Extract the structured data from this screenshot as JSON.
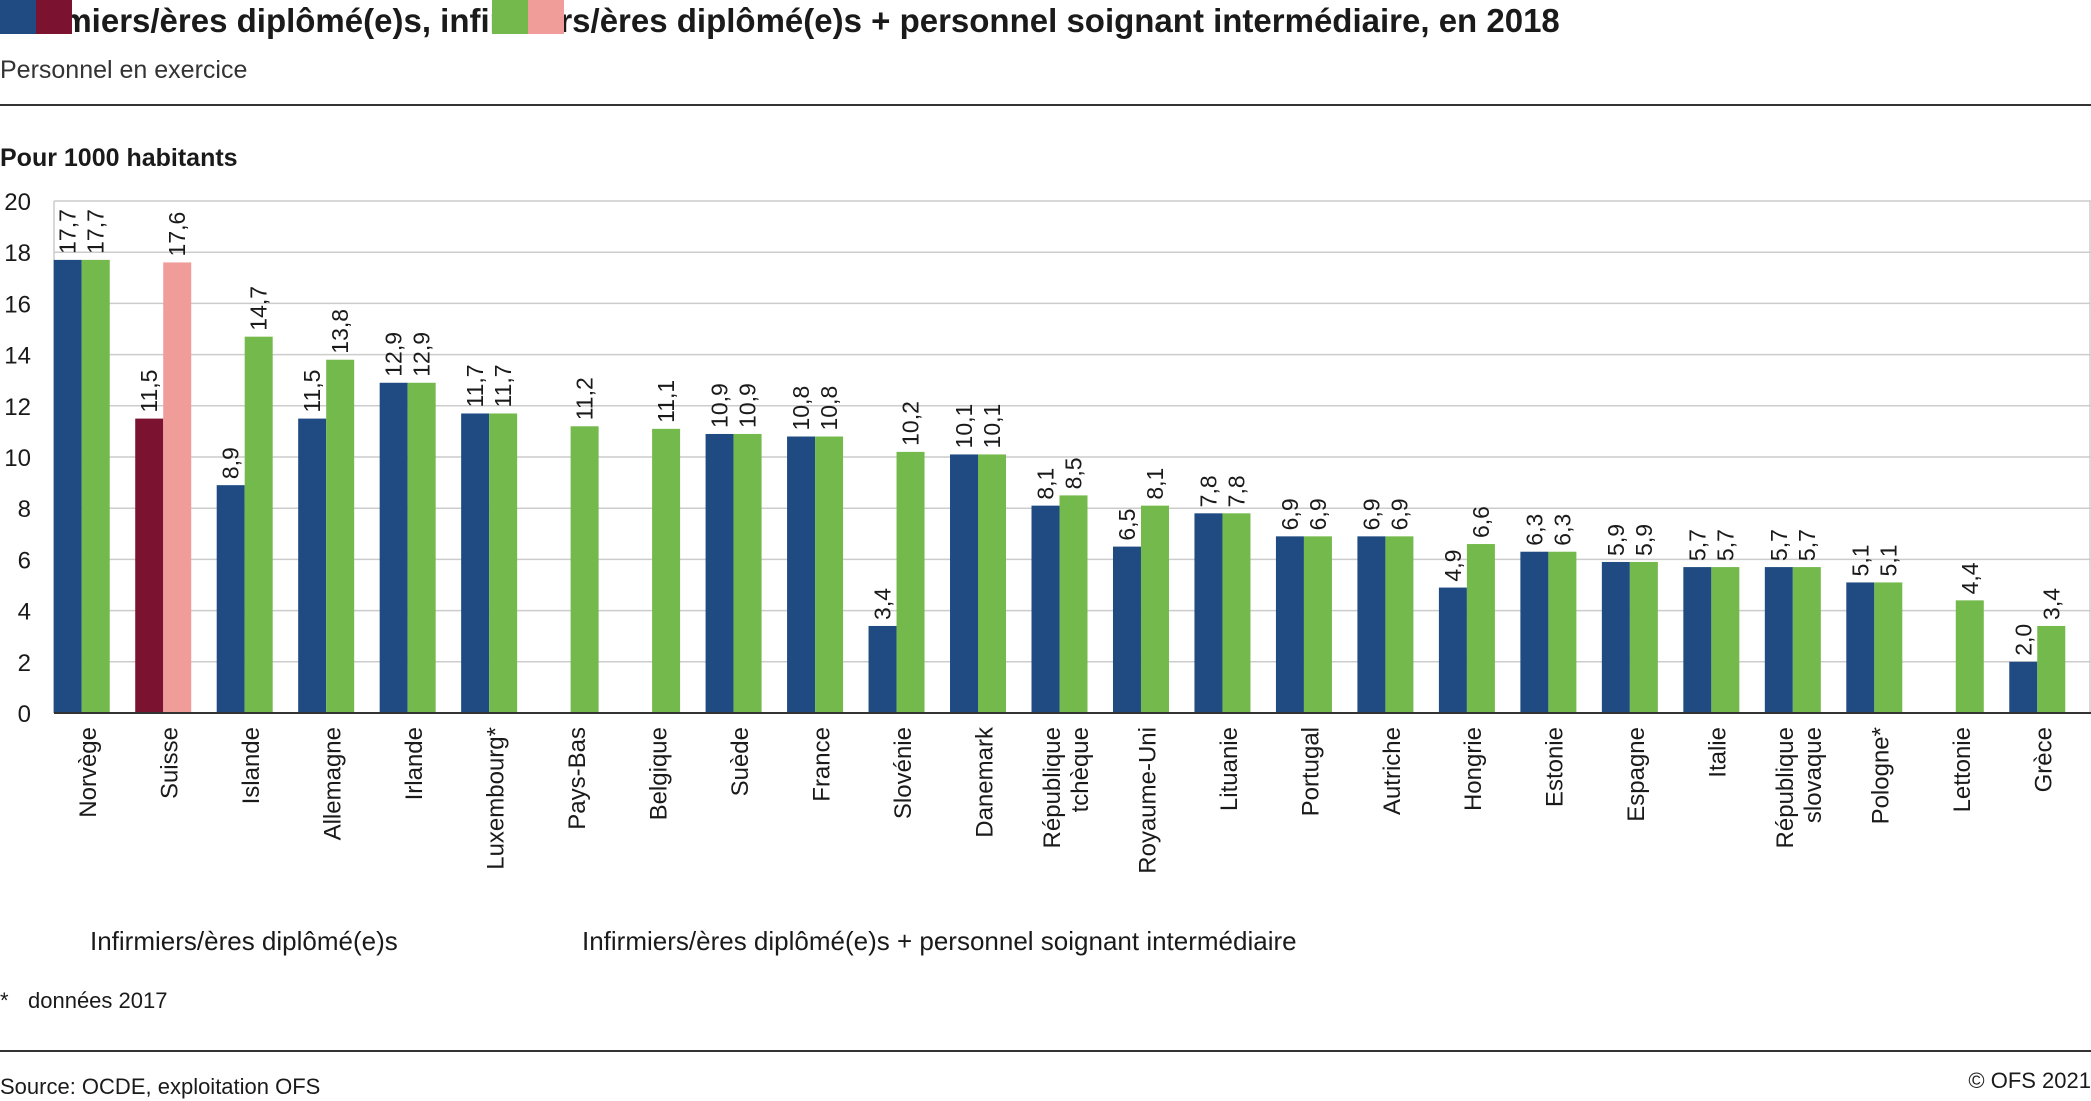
{
  "header": {
    "title": "Infirmiers/ères diplômé(e)s, infirmiers/ères diplômé(e)s + personnel soignant intermédiaire, en 2018",
    "subtitle": "Personnel en exercice"
  },
  "legend": {
    "series1": "Infirmiers/ères diplômé(e)s",
    "series2": "Infirmiers/ères diplômé(e)s + personnel soignant intermédiaire"
  },
  "footer": {
    "note_marker": "*",
    "note_text": "données 2017",
    "source": "Source: OCDE, exploitation OFS",
    "copyright": "© OFS 2021"
  },
  "colors": {
    "series1": "#1f4b82",
    "series2": "#73b94b",
    "series1_highlight": "#7a1230",
    "series2_highlight": "#f09c98",
    "gridline": "#cccccc",
    "axis": "#333333"
  },
  "chart_data": {
    "type": "bar",
    "title": "Infirmiers/ères diplômé(e)s, infirmiers/ères diplômé(e)s + personnel soignant intermédiaire, en 2018",
    "ylabel": "Pour 1000 habitants",
    "ylim": [
      0,
      20
    ],
    "yticks": [
      0,
      2,
      4,
      6,
      8,
      10,
      12,
      14,
      16,
      18,
      20
    ],
    "grid": true,
    "legend_position": "bottom-left",
    "highlight_category": "Suisse",
    "categories": [
      "Norvège",
      "Suisse",
      "Islande",
      "Allemagne",
      "Irlande",
      "Luxembourg*",
      "Pays-Bas",
      "Belgique",
      "Suède",
      "France",
      "Slovénie",
      "Danemark",
      "République\ntchèque",
      "Royaume-Uni",
      "Lituanie",
      "Portugal",
      "Autriche",
      "Hongrie",
      "Estonie",
      "Espagne",
      "Italie",
      "République\nslovaque",
      "Pologne*",
      "Lettonie",
      "Grèce"
    ],
    "series": [
      {
        "name": "Infirmiers/ères diplômé(e)s",
        "values": [
          17.7,
          11.5,
          8.9,
          11.5,
          12.9,
          11.7,
          null,
          null,
          10.9,
          10.8,
          3.4,
          10.1,
          8.1,
          6.5,
          7.8,
          6.9,
          6.9,
          4.9,
          6.3,
          5.9,
          5.7,
          5.7,
          5.1,
          null,
          2.0
        ],
        "labels": [
          "17,7",
          "11,5",
          "8,9",
          "11,5",
          "12,9",
          "11,7",
          "",
          "",
          "10,9",
          "10,8",
          "3,4",
          "10,1",
          "8,1",
          "6,5",
          "7,8",
          "6,9",
          "6,9",
          "4,9",
          "6,3",
          "5,9",
          "5,7",
          "5,7",
          "5,1",
          "",
          "2,0"
        ]
      },
      {
        "name": "Infirmiers/ères diplômé(e)s + personnel soignant intermédiaire",
        "values": [
          17.7,
          17.6,
          14.7,
          13.8,
          12.9,
          11.7,
          11.2,
          11.1,
          10.9,
          10.8,
          10.2,
          10.1,
          8.5,
          8.1,
          7.8,
          6.9,
          6.9,
          6.6,
          6.3,
          5.9,
          5.7,
          5.7,
          5.1,
          4.4,
          3.4
        ],
        "labels": [
          "17,7",
          "17,6",
          "14,7",
          "13,8",
          "12,9",
          "11,7",
          "11,2",
          "11,1",
          "10,9",
          "10,8",
          "10,2",
          "10,1",
          "8,5",
          "8,1",
          "7,8",
          "6,9",
          "6,9",
          "6,6",
          "6,3",
          "5,9",
          "5,7",
          "5,7",
          "5,1",
          "4,4",
          "3,4"
        ]
      }
    ]
  }
}
